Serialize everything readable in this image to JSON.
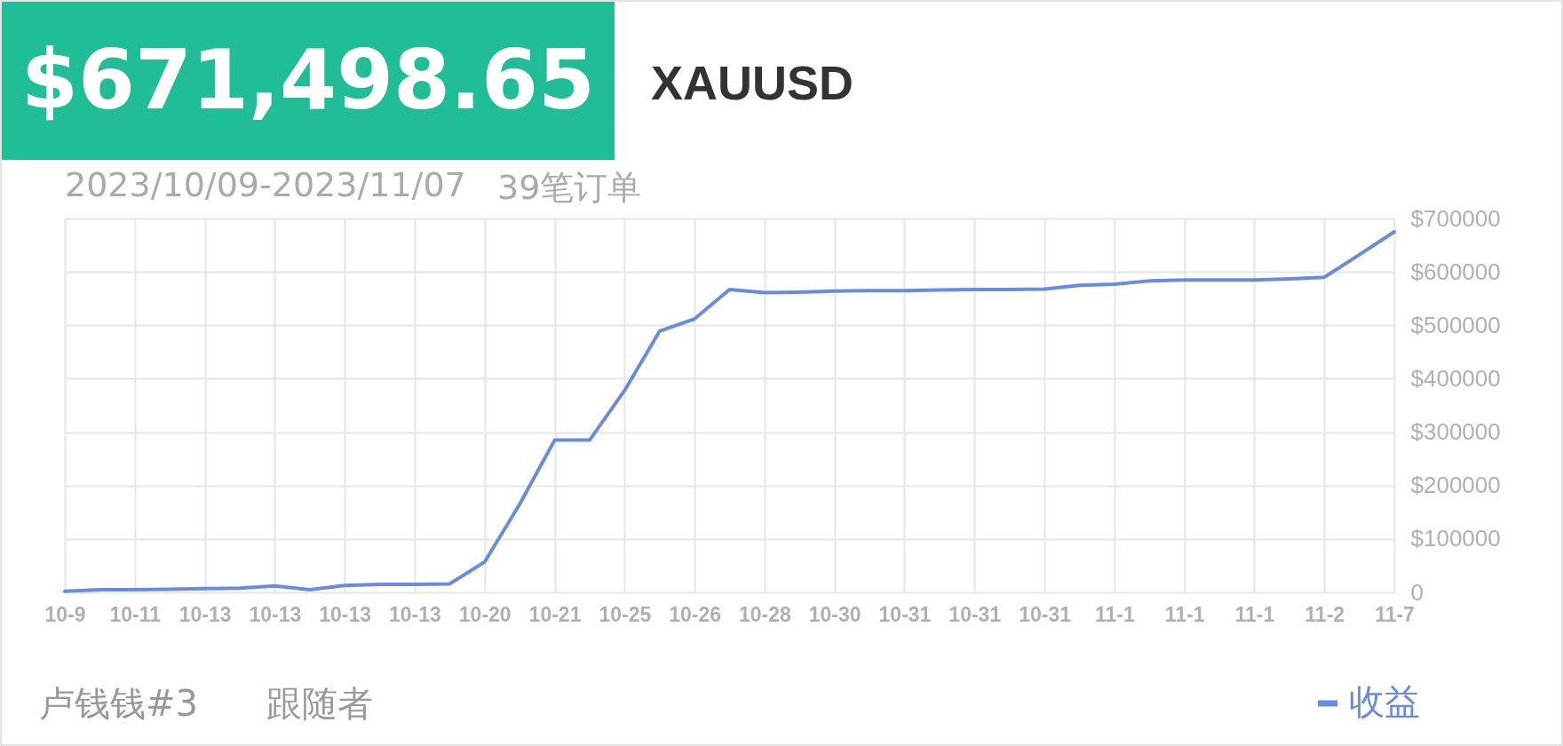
{
  "chart_data": {
    "type": "line",
    "title": "$671,498.65",
    "subtitle": "XAUUSD",
    "annotations": [
      "2023/10/09-2023/11/07",
      "39笔订单",
      "卢钱钱#3",
      "跟随者"
    ],
    "categories": [
      "10-9",
      null,
      "10-11",
      null,
      "10-13",
      null,
      "10-13",
      null,
      "10-13",
      null,
      "10-13",
      null,
      "10-20",
      null,
      "10-21",
      null,
      "10-25",
      null,
      "10-26",
      null,
      "10-28",
      null,
      "10-30",
      null,
      "10-31",
      null,
      "10-31",
      null,
      "10-31",
      null,
      "11-1",
      null,
      "11-1",
      null,
      "11-1",
      null,
      "11-2",
      null,
      "11-7"
    ],
    "series": [
      {
        "name": "收益",
        "color": "#6a8be0",
        "values": [
          2000,
          5000,
          5000,
          6000,
          7000,
          8000,
          12000,
          5000,
          13000,
          15000,
          15000,
          16000,
          57000,
          165000,
          285000,
          285000,
          378000,
          489000,
          512000,
          567000,
          561000,
          562000,
          564000,
          565000,
          565000,
          566000,
          567000,
          567000,
          568000,
          575000,
          577000,
          583000,
          585000,
          585000,
          585000,
          587000,
          590000,
          632000,
          675000
        ]
      }
    ],
    "ylim": [
      0,
      700000
    ],
    "yticks": [
      {
        "value": 0,
        "label": "0"
      },
      {
        "value": 100000,
        "label": "$100000"
      },
      {
        "value": 200000,
        "label": "$200000"
      },
      {
        "value": 300000,
        "label": "$300000"
      },
      {
        "value": 400000,
        "label": "$400000"
      },
      {
        "value": 500000,
        "label": "$500000"
      },
      {
        "value": 600000,
        "label": "$600000"
      },
      {
        "value": 700000,
        "label": "$700000"
      }
    ],
    "grid": true,
    "legend": "bottom right",
    "marker": "none",
    "line_style": "solid"
  }
}
